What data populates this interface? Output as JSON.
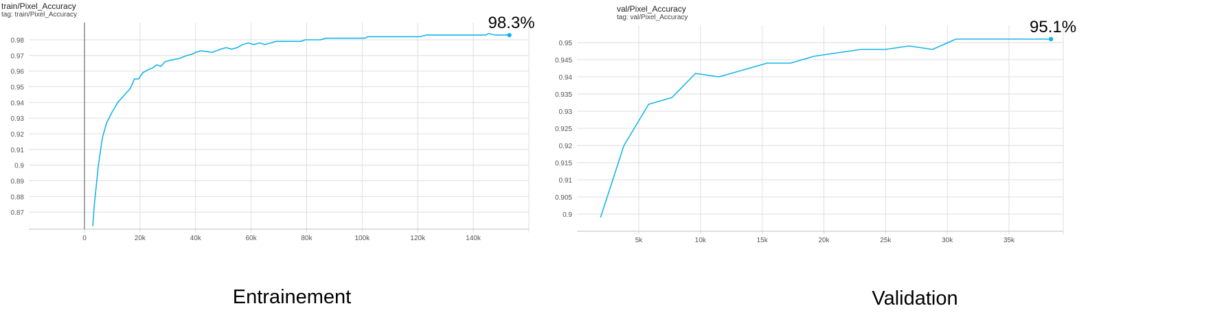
{
  "colors": {
    "series": "#12b5ea",
    "grid": "#dedede",
    "axis": "#bdbdbd",
    "tick_text": "#555555"
  },
  "charts": [
    {
      "title": "train/Pixel_Accuracy",
      "tag": "tag: train/Pixel_Accuracy",
      "last_value_label": "98.3%",
      "caption": "Entrainement"
    },
    {
      "title": "val/Pixel_Accuracy",
      "tag": "tag: val/Pixel_Accuracy",
      "last_value_label": "95.1%",
      "caption": "Validation"
    }
  ],
  "chart_data": [
    {
      "type": "line",
      "title": "train/Pixel_Accuracy",
      "xlabel": "",
      "ylabel": "",
      "xlim": [
        -20000,
        160000
      ],
      "ylim": [
        0.861,
        0.987
      ],
      "xticks": [
        0,
        20000,
        40000,
        60000,
        80000,
        100000,
        120000,
        140000
      ],
      "xticklabels": [
        "0",
        "20k",
        "40k",
        "60k",
        "80k",
        "100k",
        "120k",
        "140k"
      ],
      "yticks": [
        0.87,
        0.88,
        0.89,
        0.9,
        0.91,
        0.92,
        0.93,
        0.94,
        0.95,
        0.96,
        0.97,
        0.98
      ],
      "yticklabels": [
        "0.87",
        "0.88",
        "0.89",
        "0.9",
        "0.91",
        "0.92",
        "0.93",
        "0.94",
        "0.95",
        "0.96",
        "0.97",
        "0.98"
      ],
      "grid": true,
      "marker_last": true,
      "series": [
        {
          "x": [
            3000,
            3500,
            5000,
            6500,
            8000,
            10000,
            12000,
            14000,
            15500,
            16500,
            18000,
            19500,
            21000,
            23000,
            24500,
            26000,
            27500,
            29000,
            31000,
            34000,
            37000,
            39000,
            40000,
            42000,
            46000,
            49000,
            51000,
            53000,
            55000,
            57000,
            59000,
            61000,
            63000,
            65000,
            67000,
            69000,
            73000,
            78000,
            79500,
            85000,
            87000,
            90000,
            94000,
            96000,
            101000,
            102000,
            104000,
            106000,
            108000,
            110000,
            121000,
            123000,
            140000,
            144500,
            145500,
            148000,
            152000,
            153000
          ],
          "y": [
            0.861,
            0.874,
            0.9,
            0.918,
            0.927,
            0.934,
            0.94,
            0.944,
            0.947,
            0.949,
            0.955,
            0.955,
            0.959,
            0.961,
            0.962,
            0.964,
            0.963,
            0.966,
            0.967,
            0.968,
            0.97,
            0.971,
            0.972,
            0.973,
            0.972,
            0.974,
            0.975,
            0.974,
            0.975,
            0.977,
            0.978,
            0.977,
            0.978,
            0.977,
            0.978,
            0.979,
            0.979,
            0.979,
            0.98,
            0.98,
            0.981,
            0.981,
            0.981,
            0.981,
            0.981,
            0.982,
            0.982,
            0.982,
            0.982,
            0.982,
            0.982,
            0.983,
            0.983,
            0.983,
            0.984,
            0.983,
            0.983,
            0.983
          ]
        }
      ]
    },
    {
      "type": "line",
      "title": "val/Pixel_Accuracy",
      "xlabel": "",
      "ylabel": "",
      "xlim": [
        0,
        40000
      ],
      "ylim": [
        0.8976,
        0.9535
      ],
      "xticks": [
        5000,
        10000,
        15000,
        20000,
        25000,
        30000,
        35000
      ],
      "xticklabels": [
        "5k",
        "10k",
        "15k",
        "20k",
        "25k",
        "30k",
        "35k"
      ],
      "yticks": [
        0.9,
        0.905,
        0.91,
        0.915,
        0.92,
        0.925,
        0.93,
        0.935,
        0.94,
        0.945,
        0.95
      ],
      "yticklabels": [
        "0.9",
        "0.905",
        "0.91",
        "0.915",
        "0.92",
        "0.925",
        "0.93",
        "0.935",
        "0.94",
        "0.945",
        "0.95"
      ],
      "grid": true,
      "marker_last": true,
      "series": [
        {
          "x": [
            1900,
            3800,
            5800,
            7700,
            9600,
            11500,
            15400,
            17300,
            19200,
            23000,
            25000,
            26900,
            28800,
            30700,
            34500,
            38400
          ],
          "y": [
            0.899,
            0.92,
            0.932,
            0.934,
            0.941,
            0.94,
            0.944,
            0.944,
            0.946,
            0.948,
            0.948,
            0.949,
            0.948,
            0.951,
            0.951,
            0.951
          ]
        }
      ]
    }
  ]
}
